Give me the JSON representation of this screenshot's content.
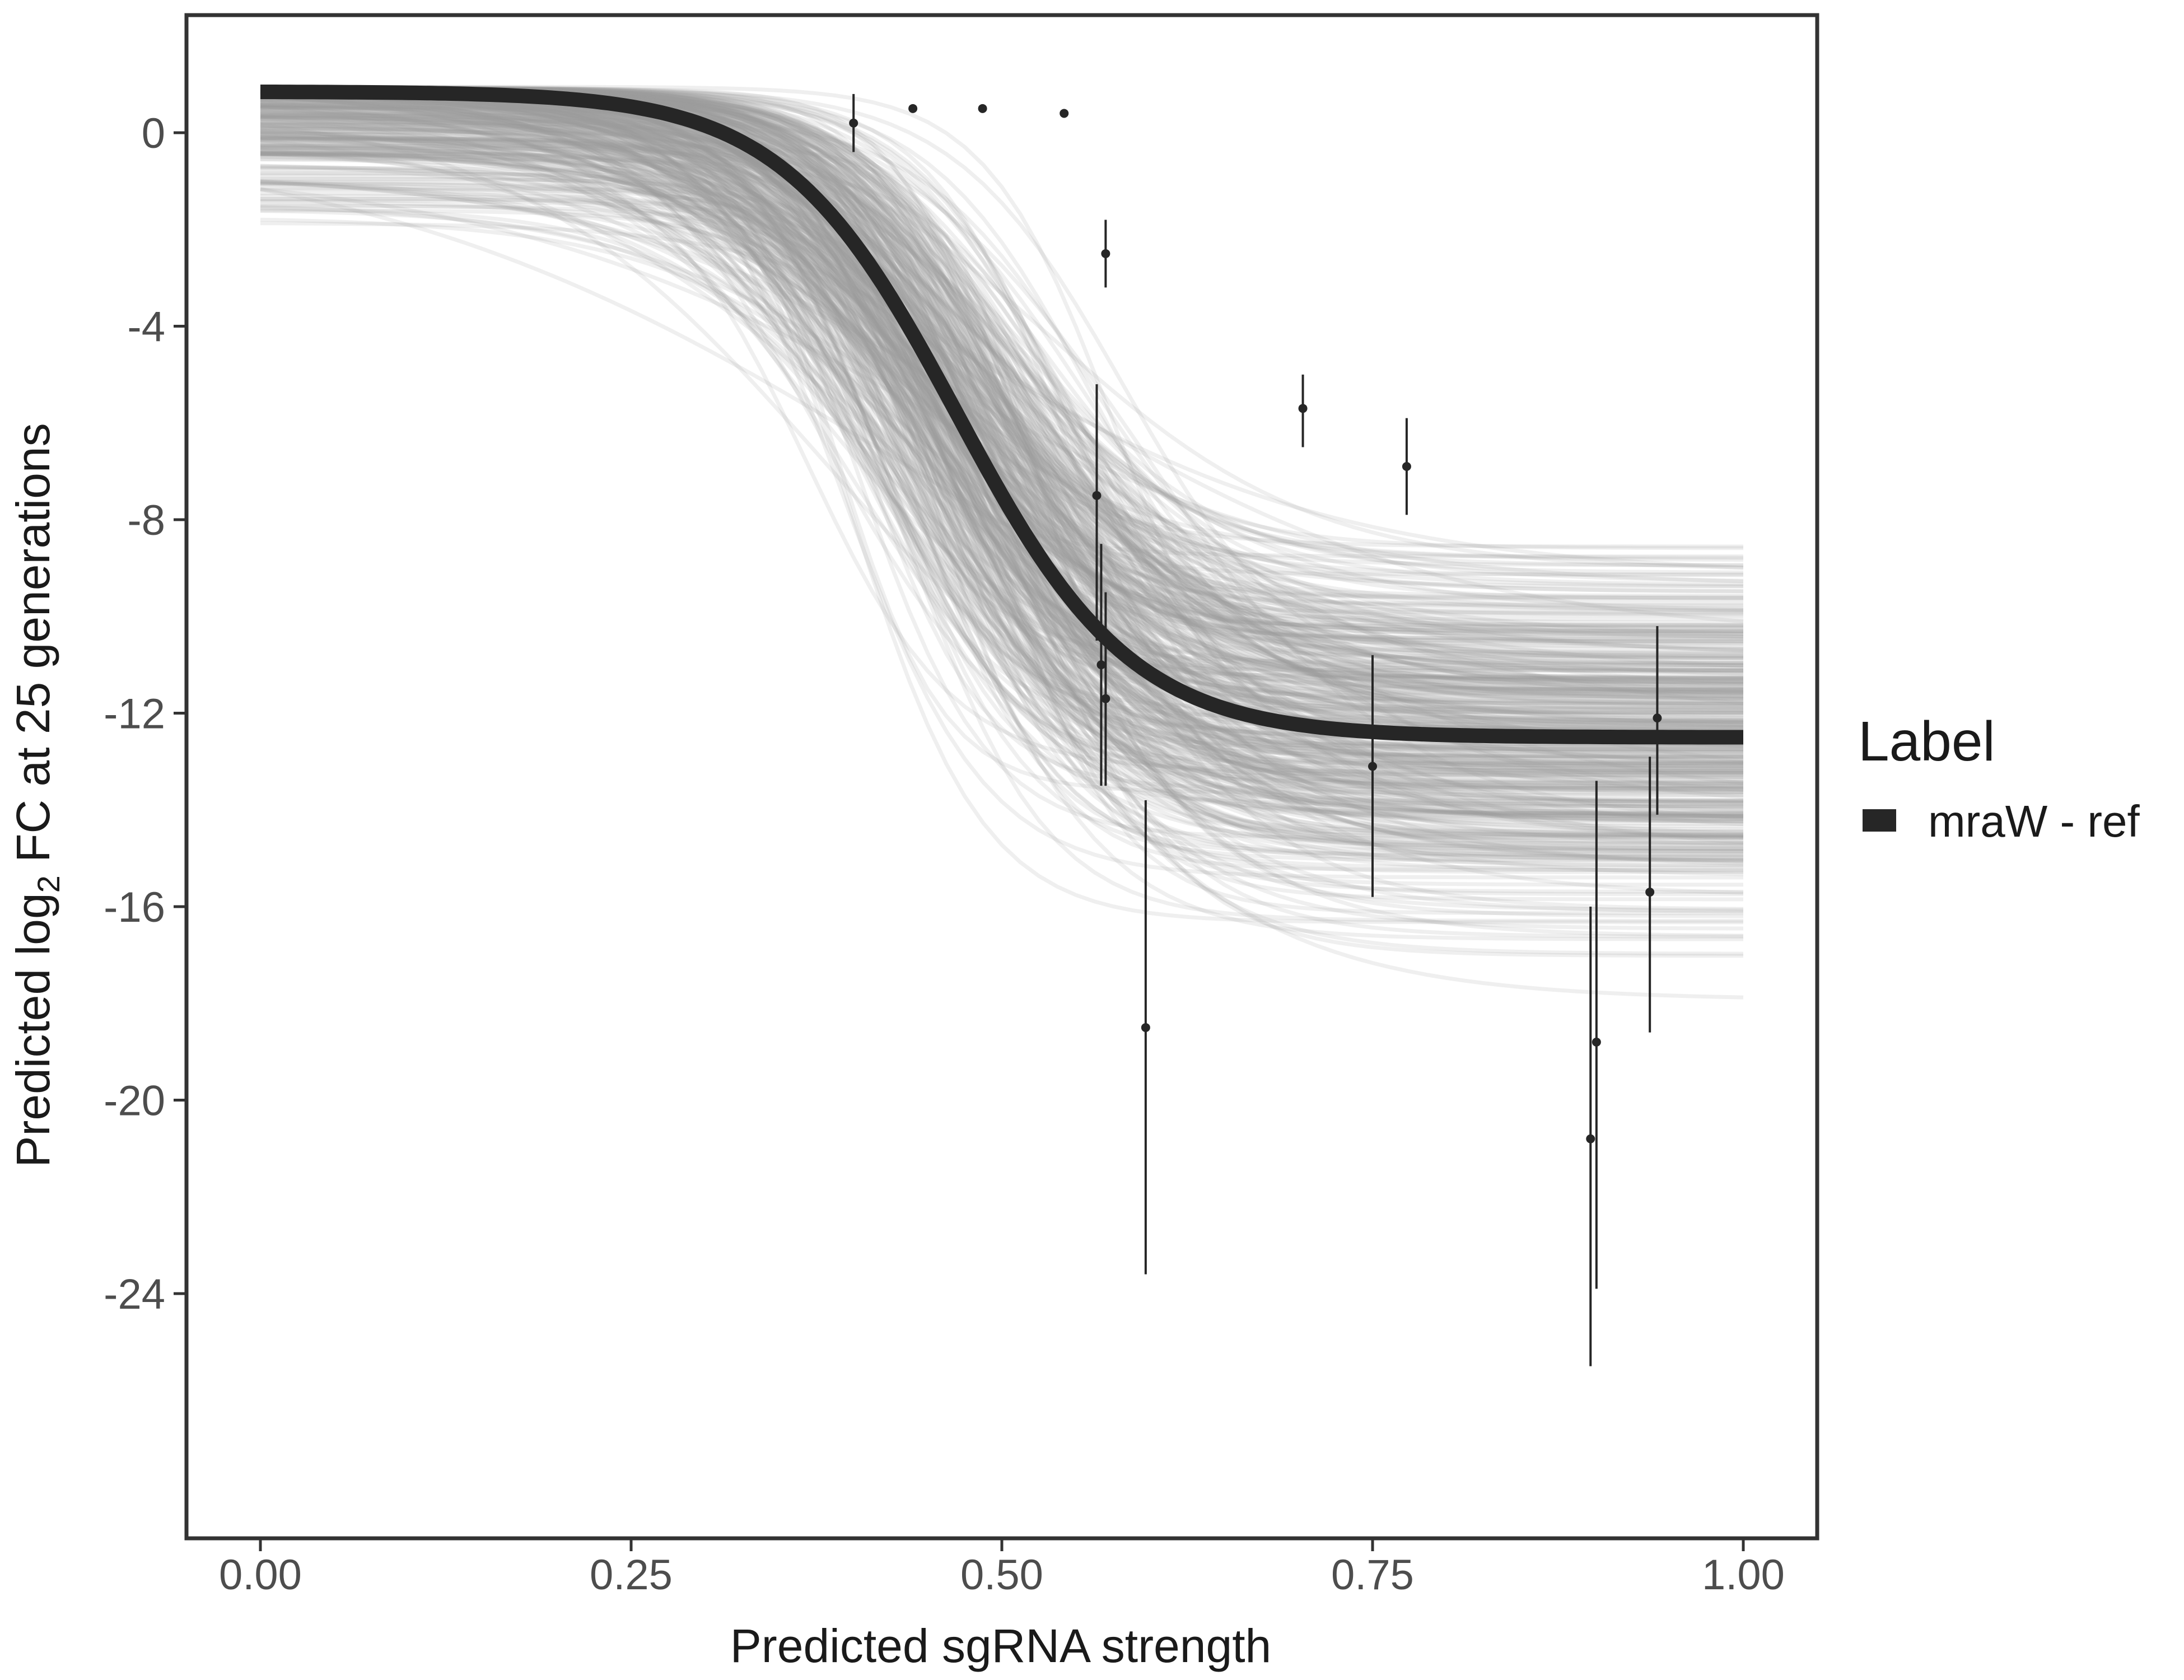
{
  "chart_data": {
    "type": "line",
    "title": "",
    "xlabel": "Predicted sgRNA strength",
    "ylabel_parts": {
      "before": "Predicted  log",
      "subscript": "2",
      "after": " FC at 25 generations"
    },
    "xlim": [
      0,
      1
    ],
    "ylim": [
      -29,
      2.5
    ],
    "x_ticks": [
      0,
      0.25,
      0.5,
      0.75,
      1
    ],
    "x_tick_labels": [
      "0.00",
      "0.25",
      "0.50",
      "0.75",
      "1.00"
    ],
    "y_ticks": [
      0,
      -4,
      -8,
      -12,
      -16,
      -20,
      -24
    ],
    "y_tick_labels": [
      "0",
      "-4",
      "-8",
      "-12",
      "-16",
      "-20",
      "-24"
    ],
    "grid": false,
    "legend": {
      "title": "Label",
      "position": "right",
      "entries": [
        {
          "label": "mraW - ref",
          "color": "#262626"
        }
      ]
    },
    "fit_line": {
      "name": "mraW - ref",
      "model": "sigmoid",
      "upper": 0.85,
      "lower": -12.5,
      "midpoint": 0.47,
      "slope": 17,
      "color": "#262626"
    },
    "posterior_draws": {
      "count": 420,
      "color": "#9a9a9a"
    },
    "points": [
      {
        "x": 0.4,
        "y": 0.2,
        "lo": -0.4,
        "hi": 0.8
      },
      {
        "x": 0.44,
        "y": 0.5,
        "lo": 0.5,
        "hi": 0.5
      },
      {
        "x": 0.487,
        "y": 0.5,
        "lo": 0.5,
        "hi": 0.5
      },
      {
        "x": 0.542,
        "y": 0.4,
        "lo": 0.4,
        "hi": 0.4
      },
      {
        "x": 0.57,
        "y": -2.5,
        "lo": -3.2,
        "hi": -1.8
      },
      {
        "x": 0.564,
        "y": -7.5,
        "lo": -10.5,
        "hi": -5.2
      },
      {
        "x": 0.567,
        "y": -11.0,
        "lo": -13.5,
        "hi": -8.5
      },
      {
        "x": 0.57,
        "y": -11.7,
        "lo": -13.5,
        "hi": -9.5
      },
      {
        "x": 0.597,
        "y": -18.5,
        "lo": -23.6,
        "hi": -13.8
      },
      {
        "x": 0.703,
        "y": -5.7,
        "lo": -6.5,
        "hi": -5.0
      },
      {
        "x": 0.75,
        "y": -13.1,
        "lo": -15.8,
        "hi": -10.8
      },
      {
        "x": 0.773,
        "y": -6.9,
        "lo": -7.9,
        "hi": -5.9
      },
      {
        "x": 0.897,
        "y": -20.8,
        "lo": -25.5,
        "hi": -16.0
      },
      {
        "x": 0.901,
        "y": -18.8,
        "lo": -23.9,
        "hi": -13.4
      },
      {
        "x": 0.937,
        "y": -15.7,
        "lo": -18.6,
        "hi": -12.9
      },
      {
        "x": 0.942,
        "y": -12.1,
        "lo": -14.1,
        "hi": -10.2
      }
    ]
  }
}
